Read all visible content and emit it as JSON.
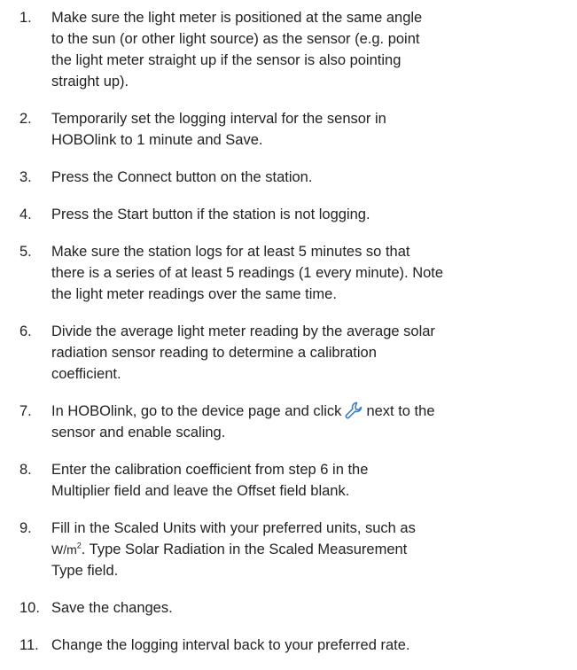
{
  "items": [
    {
      "number": "1.",
      "parts": [
        "Make sure the light meter is positioned at the same angle",
        "to the sun (or other light source) as the sensor (e.g. point",
        "the light meter straight up if the sensor is also pointing",
        "straight up)."
      ]
    },
    {
      "number": "2.",
      "parts": [
        "Temporarily set the logging interval for the sensor in",
        "HOBOlink to 1 minute and Save."
      ]
    },
    {
      "number": "3.",
      "parts": [
        "Press the Connect button on the station."
      ]
    },
    {
      "number": "4.",
      "parts": [
        "Press the Start button if the station is not logging."
      ]
    },
    {
      "number": "5.",
      "parts": [
        "Make sure the station logs for at least 5 minutes so that",
        "there is a series of at least 5 readings (1 every minute). Note",
        "the light meter readings over the same time."
      ]
    },
    {
      "number": "6.",
      "parts": [
        "Divide the average light meter reading by the average solar",
        "radiation sensor reading to determine a calibration",
        "coefficient."
      ]
    },
    {
      "number": "7.",
      "parts": [
        "In HOBOlink, go to the device page and click",
        "next to the",
        "sensor and enable scaling."
      ]
    },
    {
      "number": "8.",
      "parts": [
        "Enter the calibration coefficient from step 6 in the",
        "Multiplier field and leave the Offset field blank."
      ]
    },
    {
      "number": "9.",
      "parts": [
        "Fill in the Scaled Units with your preferred units, such as",
        "W/m",
        "2",
        ". Type Solar Radiation in the Scaled Measurement",
        "Type field."
      ]
    },
    {
      "number": "10.",
      "parts": [
        "Save the changes."
      ]
    },
    {
      "number": "11.",
      "parts": [
        "Change the logging interval back to your preferred rate."
      ]
    }
  ]
}
